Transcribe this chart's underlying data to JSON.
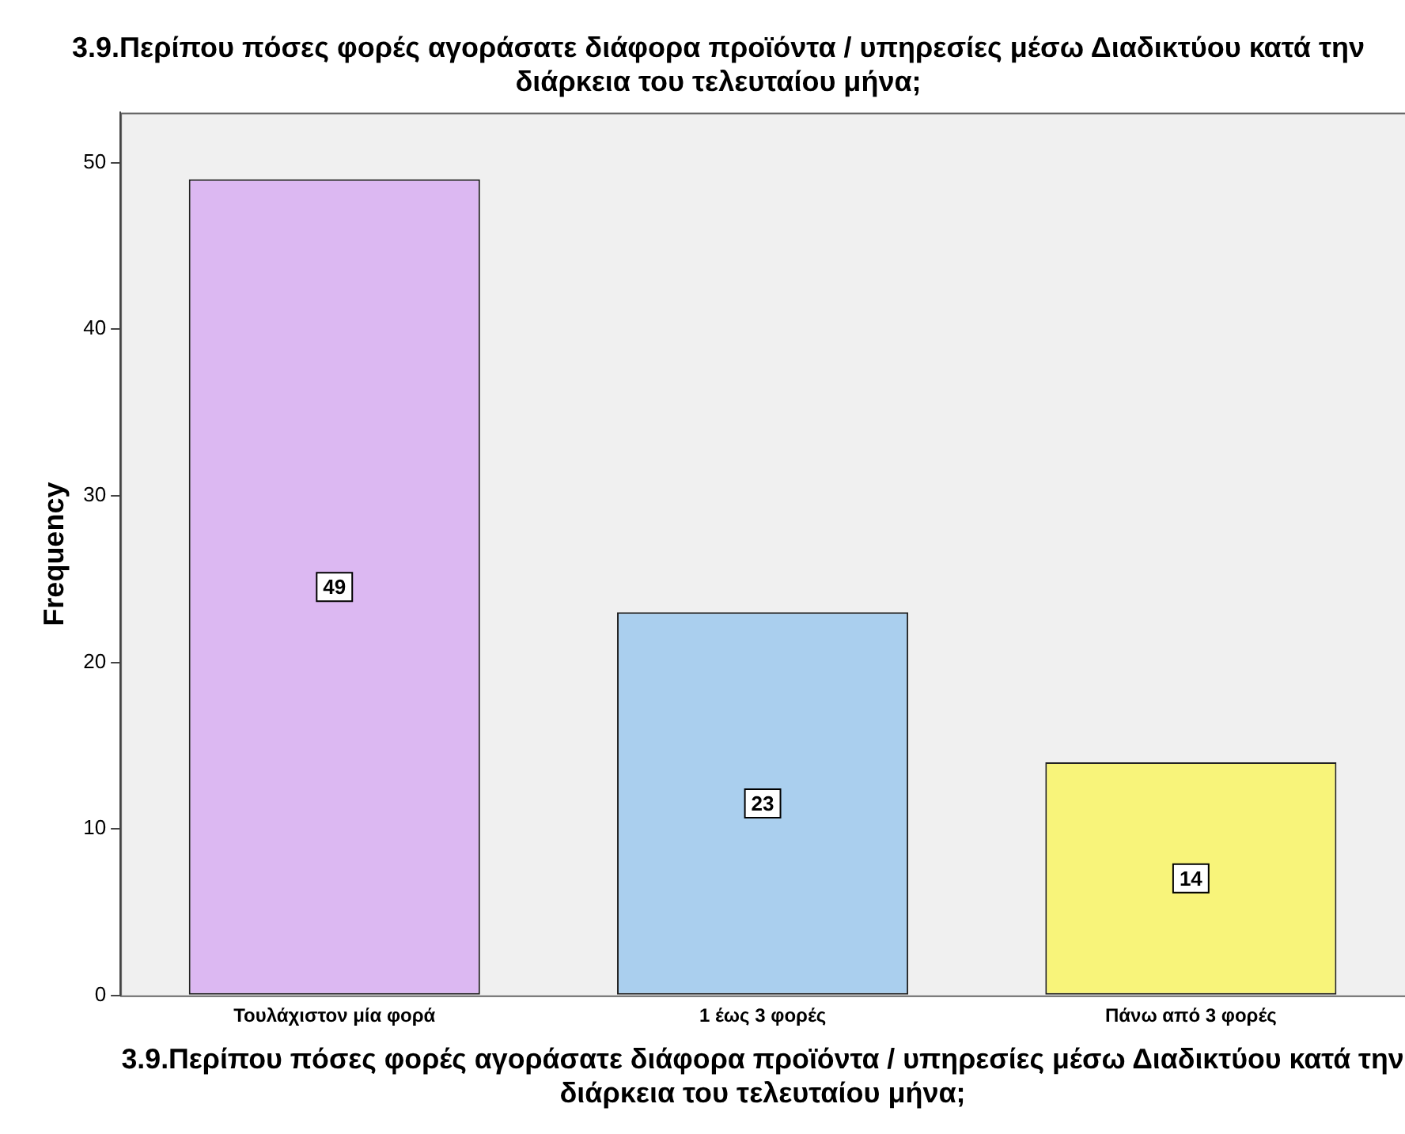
{
  "chart_data": {
    "type": "bar",
    "title": "3.9.Περίπου πόσες φορές αγοράσατε διάφορα προϊόντα / υπηρεσίες μέσω Διαδικτύου κατά την διάρκεια του τελευταίου μήνα;",
    "xlabel": "3.9.Περίπου πόσες φορές αγοράσατε διάφορα προϊόντα / υπηρεσίες μέσω Διαδικτύου κατά την διάρκεια του τελευταίου μήνα;",
    "ylabel": "Frequency",
    "categories": [
      "Τουλάχιστον μία φορά",
      "1 έως 3 φορές",
      "Πάνω από 3 φορές"
    ],
    "values": [
      49,
      23,
      14
    ],
    "colors": [
      "#dcb8f2",
      "#aacfee",
      "#f8f47a"
    ],
    "ylim": [
      0,
      53
    ],
    "yticks": [
      0,
      10,
      20,
      30,
      40,
      50
    ],
    "grid": false,
    "legend": false,
    "data_labels": true
  }
}
